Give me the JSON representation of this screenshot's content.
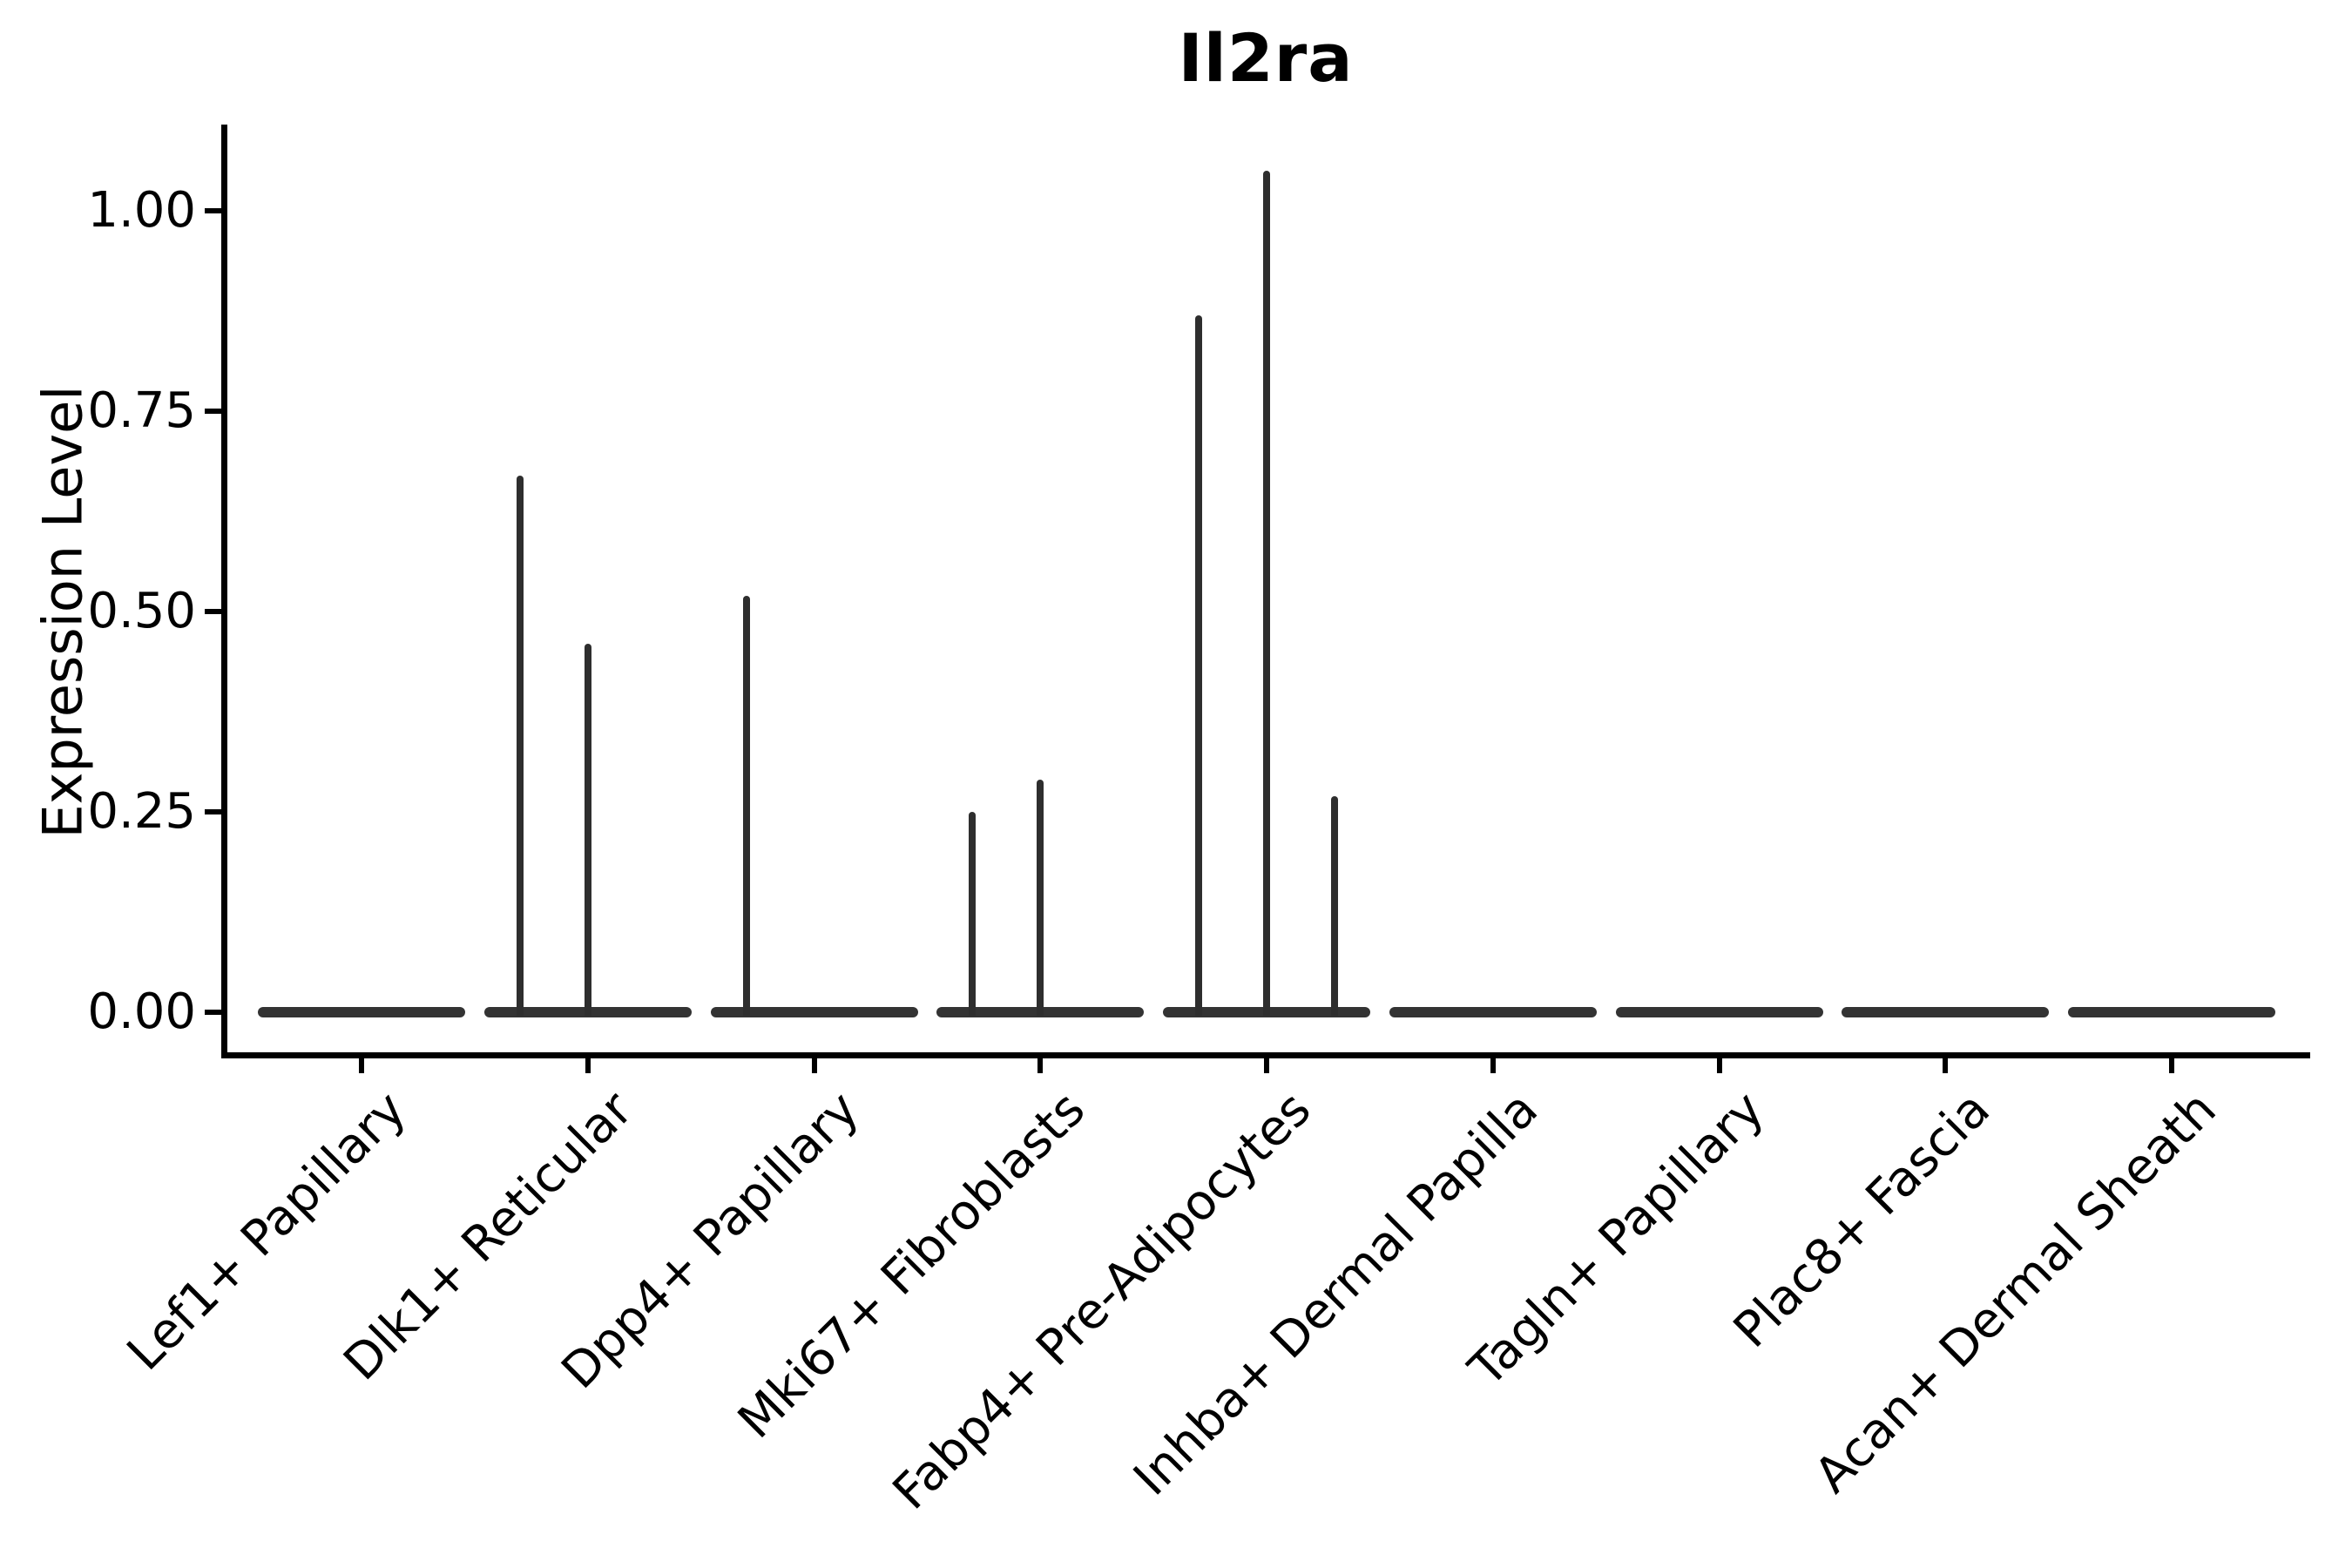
{
  "figure": {
    "title": "Il2ra",
    "ylabel": "Expression Level"
  },
  "chart_data": {
    "type": "violin",
    "title": "Il2ra",
    "xlabel": "",
    "ylabel": "Expression Level",
    "ylim": [
      -0.05,
      1.11
    ],
    "yticks": [
      0.0,
      0.25,
      0.5,
      0.75,
      1.0
    ],
    "ytick_labels": [
      "0.00",
      "0.25",
      "0.50",
      "0.75",
      "1.00"
    ],
    "grid": false,
    "legend": null,
    "categories": [
      "Lef1+ Papillary",
      "Dlk1+ Reticular",
      "Dpp4+ Papillary",
      "Mki67+ Fibroblasts",
      "Fabp4+ Pre-Adipocytes",
      "Inhba+ Dermal Papilla",
      "Tagln+ Papillary",
      "Plac8+ Fascia",
      "Acan+ Dermal Sheath"
    ],
    "series": [
      {
        "category": "Lef1+ Papillary",
        "baseline_value": 0,
        "peaks": []
      },
      {
        "category": "Dlk1+ Reticular",
        "baseline_value": 0,
        "peaks": [
          {
            "offset": -0.3,
            "value": 0.67
          },
          {
            "offset": 0.0,
            "value": 0.46
          }
        ]
      },
      {
        "category": "Dpp4+ Papillary",
        "baseline_value": 0,
        "peaks": [
          {
            "offset": -0.3,
            "value": 0.52
          }
        ]
      },
      {
        "category": "Mki67+ Fibroblasts",
        "baseline_value": 0,
        "peaks": [
          {
            "offset": -0.3,
            "value": 0.25
          },
          {
            "offset": 0.0,
            "value": 0.29
          }
        ]
      },
      {
        "category": "Fabp4+ Pre-Adipocytes",
        "baseline_value": 0,
        "peaks": [
          {
            "offset": -0.3,
            "value": 0.87
          },
          {
            "offset": 0.0,
            "value": 1.05
          },
          {
            "offset": 0.3,
            "value": 0.27
          }
        ]
      },
      {
        "category": "Inhba+ Dermal Papilla",
        "baseline_value": 0,
        "peaks": []
      },
      {
        "category": "Tagln+ Papillary",
        "baseline_value": 0,
        "peaks": []
      },
      {
        "category": "Plac8+ Fascia",
        "baseline_value": 0,
        "peaks": []
      },
      {
        "category": "Acan+ Dermal Sheath",
        "baseline_value": 0,
        "peaks": []
      }
    ]
  },
  "style": {
    "background": "#ffffff",
    "axis_color": "#000000",
    "text_color": "#000000",
    "violin_color": "#2e2e2e",
    "baseline_color": "#333333"
  }
}
